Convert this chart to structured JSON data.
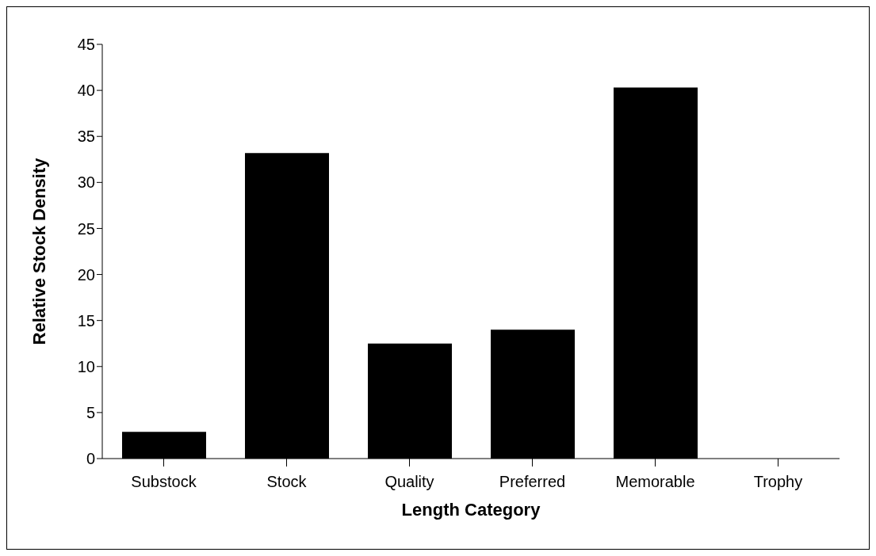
{
  "chart_data": {
    "type": "bar",
    "xlabel": "Length Category",
    "ylabel": "Relative Stock Density",
    "categories": [
      "Substock",
      "Stock",
      "Quality",
      "Preferred",
      "Memorable",
      "Trophy"
    ],
    "values": [
      2.9,
      33.2,
      12.5,
      14.0,
      40.3,
      0
    ],
    "color": "#000000",
    "ylim": [
      0,
      45
    ],
    "yticks": [
      0,
      5,
      10,
      15,
      20,
      25,
      30,
      35,
      40,
      45
    ],
    "grid": false,
    "legend": false
  }
}
